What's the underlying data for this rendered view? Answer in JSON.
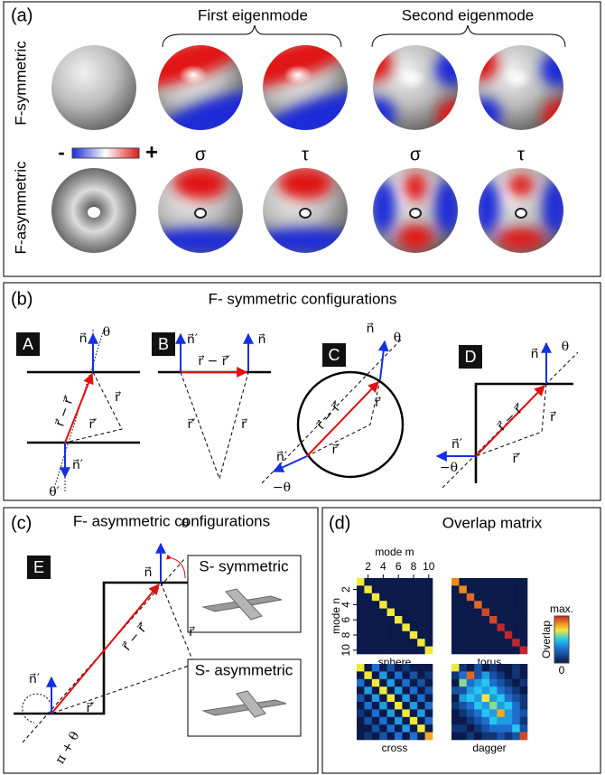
{
  "panel_a": {
    "label": "(a)",
    "first_eigenmode": "First eigenmode",
    "second_eigenmode": "Second eigenmode",
    "row_labels": [
      "F-symmetric",
      "F-asymmetric"
    ],
    "colorbar_labels": [
      "-",
      "+"
    ],
    "field_labels": [
      "σ",
      "τ",
      "σ",
      "τ"
    ]
  },
  "panel_b": {
    "label": "(b)",
    "title": "F- symmetric configurations",
    "diagrams": [
      {
        "id": "A",
        "symbols": [
          "n⃗",
          "θ",
          "r⃗ − r⃗′",
          "r⃗",
          "r⃗′",
          "n⃗′",
          "θ′"
        ]
      },
      {
        "id": "B",
        "symbols": [
          "n⃗′",
          "n⃗",
          "r⃗ − r⃗′",
          "r⃗′",
          "r⃗"
        ]
      },
      {
        "id": "C",
        "symbols": [
          "n⃗",
          "θ",
          "r⃗ − r⃗′",
          "r⃗",
          "r⃗′",
          "n⃗′",
          "−θ"
        ]
      },
      {
        "id": "D",
        "symbols": [
          "n⃗",
          "θ",
          "r⃗ − r⃗′",
          "r⃗",
          "r⃗′",
          "n⃗′",
          "−θ"
        ]
      }
    ]
  },
  "panel_c": {
    "label": "(c)",
    "title": "F- asymmetric configurations",
    "diagram": {
      "id": "E",
      "symbols": [
        "n⃗",
        "θ",
        "r⃗ − r⃗′",
        "r⃗",
        "r⃗′",
        "n⃗′",
        "π + θ"
      ]
    },
    "insets": [
      "S- symmetric",
      "S- asymmetric"
    ]
  },
  "panel_d": {
    "label": "(d)",
    "title": "Overlap matrix",
    "x_label": "mode m",
    "y_label": "mode n",
    "x_ticks": [
      2,
      4,
      6,
      8,
      10
    ],
    "y_ticks": [
      2,
      4,
      6,
      8,
      10
    ],
    "colorbar": {
      "label": "Overlap",
      "max_label": "max.",
      "min_label": "0"
    },
    "matrices": [
      {
        "name": "sphere",
        "values": [
          [
            0.7,
            0,
            0,
            0,
            0,
            0,
            0,
            0,
            0,
            0
          ],
          [
            0,
            0.7,
            0,
            0,
            0,
            0,
            0,
            0,
            0,
            0
          ],
          [
            0,
            0,
            0.7,
            0,
            0,
            0,
            0,
            0,
            0,
            0
          ],
          [
            0,
            0,
            0,
            0.7,
            0,
            0,
            0,
            0,
            0,
            0
          ],
          [
            0,
            0,
            0,
            0,
            0.7,
            0,
            0,
            0,
            0,
            0
          ],
          [
            0,
            0,
            0,
            0,
            0,
            0.7,
            0,
            0,
            0,
            0
          ],
          [
            0,
            0,
            0,
            0,
            0,
            0,
            0.7,
            0,
            0,
            0
          ],
          [
            0,
            0,
            0,
            0,
            0,
            0,
            0,
            0.7,
            0,
            0
          ],
          [
            0,
            0,
            0,
            0,
            0,
            0,
            0,
            0,
            0.7,
            0
          ],
          [
            0,
            0,
            0,
            0,
            0,
            0,
            0,
            0,
            0,
            0.7
          ]
        ]
      },
      {
        "name": "torus",
        "values": [
          [
            0.85,
            0,
            0,
            0,
            0,
            0,
            0,
            0,
            0,
            0
          ],
          [
            0,
            0.85,
            0,
            0,
            0,
            0,
            0,
            0,
            0,
            0
          ],
          [
            0,
            0,
            0.9,
            0,
            0,
            0,
            0,
            0,
            0,
            0
          ],
          [
            0,
            0,
            0,
            0.9,
            0,
            0,
            0,
            0,
            0,
            0
          ],
          [
            0,
            0,
            0,
            0,
            0.95,
            0,
            0,
            0,
            0,
            0
          ],
          [
            0,
            0,
            0,
            0,
            0,
            0.95,
            0,
            0,
            0,
            0
          ],
          [
            0,
            0,
            0,
            0,
            0,
            0,
            1,
            0,
            0,
            0
          ],
          [
            0,
            0,
            0,
            0,
            0,
            0,
            0,
            1,
            0,
            0
          ],
          [
            0,
            0,
            0,
            0,
            0,
            0,
            0,
            0,
            1,
            0
          ],
          [
            0,
            0,
            0,
            0,
            0,
            0,
            0,
            0,
            0,
            1
          ]
        ]
      },
      {
        "name": "cross",
        "values": [
          [
            0.7,
            0,
            0.3,
            0,
            0.2,
            0,
            0.1,
            0,
            0,
            0
          ],
          [
            0,
            0.7,
            0,
            0.4,
            0,
            0.3,
            0,
            0.2,
            0,
            0.1
          ],
          [
            0.3,
            0,
            0.7,
            0,
            0.4,
            0,
            0.3,
            0,
            0.2,
            0
          ],
          [
            0,
            0.4,
            0,
            0.7,
            0,
            0.4,
            0,
            0.3,
            0,
            0.2
          ],
          [
            0.2,
            0,
            0.4,
            0,
            0.7,
            0,
            0.4,
            0,
            0.3,
            0
          ],
          [
            0,
            0.3,
            0,
            0.4,
            0,
            0.7,
            0,
            0.4,
            0,
            0.3
          ],
          [
            0.1,
            0,
            0.3,
            0,
            0.4,
            0,
            0.7,
            0,
            0.4,
            0
          ],
          [
            0,
            0.2,
            0,
            0.3,
            0,
            0.4,
            0,
            0.7,
            0,
            0.3
          ],
          [
            0,
            0,
            0.2,
            0,
            0.3,
            0,
            0.4,
            0,
            0.7,
            0
          ],
          [
            0,
            0.1,
            0,
            0.2,
            0,
            0.3,
            0,
            0.3,
            0,
            0.8
          ]
        ]
      },
      {
        "name": "dagger",
        "values": [
          [
            0.7,
            0.1,
            0,
            0.2,
            0,
            0.1,
            0,
            0,
            0.1,
            0
          ],
          [
            0.1,
            0.3,
            0.9,
            0.2,
            0.4,
            0.2,
            0.1,
            0,
            0.1,
            0
          ],
          [
            0,
            0.6,
            0.3,
            0.4,
            0.5,
            0.3,
            0.2,
            0.1,
            0,
            0.1
          ],
          [
            0.2,
            0.2,
            0.4,
            0.5,
            0.4,
            0.5,
            0.3,
            0.2,
            0.1,
            0
          ],
          [
            0,
            0.4,
            0.5,
            0.4,
            0.7,
            0.4,
            0.5,
            0.3,
            0.2,
            0.1
          ],
          [
            0.1,
            0.2,
            0.3,
            0.5,
            0.4,
            0.6,
            0.4,
            0.5,
            0.3,
            0.1
          ],
          [
            0,
            0.1,
            0.2,
            0.3,
            0.5,
            0.4,
            0.8,
            0.4,
            0.3,
            0.2
          ],
          [
            0,
            0,
            0.1,
            0.2,
            0.3,
            0.5,
            0.4,
            0.4,
            0.3,
            0.1
          ],
          [
            0.1,
            0.1,
            0,
            0.1,
            0.2,
            0.3,
            0.3,
            0.3,
            0.5,
            0.2
          ],
          [
            0,
            0,
            0.1,
            0,
            0.1,
            0.1,
            0.2,
            0.1,
            0.2,
            0.95
          ]
        ]
      }
    ]
  }
}
